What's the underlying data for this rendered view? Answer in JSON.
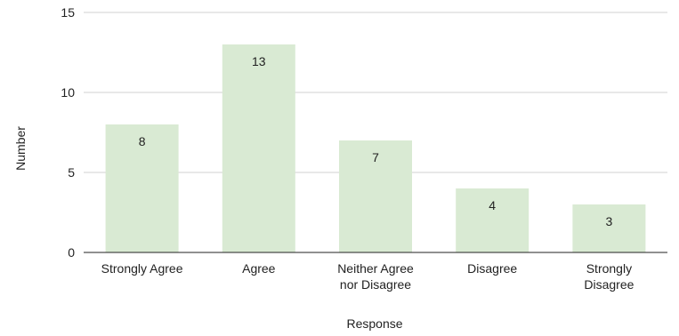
{
  "chart_data": {
    "type": "bar",
    "title": "",
    "xlabel": "Response",
    "ylabel": "Number",
    "categories": [
      [
        "Strongly Agree"
      ],
      [
        "Agree"
      ],
      [
        "Neither Agree",
        "nor Disagree"
      ],
      [
        "Disagree"
      ],
      [
        "Strongly",
        "Disagree"
      ]
    ],
    "values": [
      8,
      13,
      7,
      4,
      3
    ],
    "ylim": [
      0,
      15
    ],
    "yticks": [
      0,
      5,
      10,
      15
    ],
    "grid": true,
    "legend": "none",
    "colors": {
      "bar": "#d9ead3",
      "grid": "#d0d0d0",
      "baseline": "#222222",
      "text": "#222222"
    }
  }
}
